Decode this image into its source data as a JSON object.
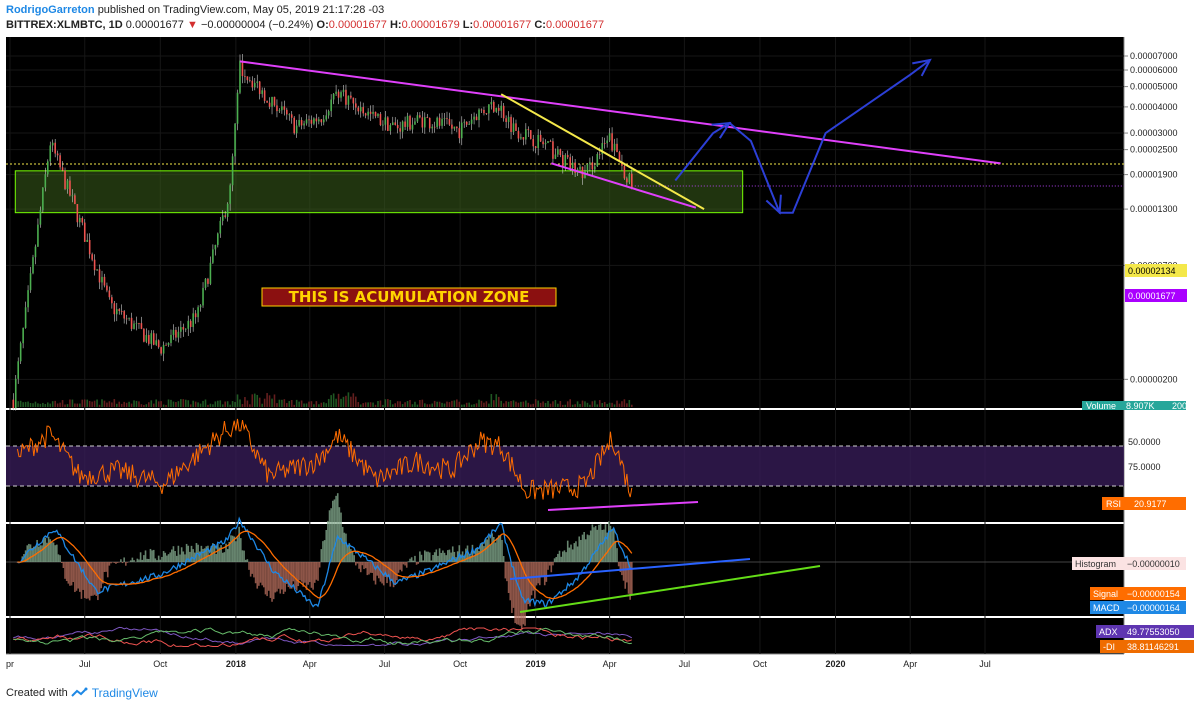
{
  "header": {
    "author": "RodrigoGarreton",
    "published_text": "published on TradingView.com, May 05, 2019 21:17:28 -03",
    "symbol": "BITTREX:XLMBTC, 1D",
    "last_price": "0.00001677",
    "change_arrow": "▼",
    "change": "−0.00000004 (−0.24%)",
    "open_label": "O:",
    "open": "0.00001677",
    "high_label": "H:",
    "high": "0.00001679",
    "low_label": "L:",
    "low": "0.00001677",
    "close_label": "C:",
    "close": "0.00001677"
  },
  "footer": {
    "created_with": "Created with",
    "brand": "TradingView"
  },
  "colors": {
    "background": "#000000",
    "up_candle": "#4caf50",
    "down_candle": "#ef5350",
    "wick": "#cfcfcf",
    "trendline_magenta": "#e040fb",
    "trendline_yellow": "#f4e84a",
    "zone_green": "#76ff03",
    "arrows_blue": "#2c3fd6",
    "rsi_line": "#ff6d00",
    "macd_line": "#1e88e5",
    "signal_line": "#ff6d00",
    "divergence_green": "#64dd17",
    "divergence_blue": "#2962ff"
  },
  "chart_data": {
    "type": "candlestick",
    "symbol": "XLMBTC",
    "exchange": "BITTREX",
    "interval": "1D",
    "scale": "log",
    "annotation": "THIS IS ACUMULATION ZONE",
    "price_axis_ticks": [
      "0.00007000",
      "0.00006000",
      "0.00005000",
      "0.00004000",
      "0.00003000",
      "0.00002500",
      "0.00001900",
      "0.00001300",
      "0.00000700",
      "0.00000200"
    ],
    "time_axis_labels": [
      "pr",
      "Jul",
      "Oct",
      "2018",
      "Apr",
      "Jul",
      "Oct",
      "2019",
      "Apr",
      "Jul",
      "Oct",
      "2020",
      "Apr",
      "Jul"
    ],
    "price_key_dates": [
      "2017-04-05",
      "2017-05-20",
      "2017-06-15",
      "2017-08-01",
      "2017-10-01",
      "2017-11-15",
      "2017-12-25",
      "2018-01-06",
      "2018-01-20",
      "2018-03-15",
      "2018-04-15",
      "2018-05-05",
      "2018-06-15",
      "2018-07-15",
      "2018-08-15",
      "2018-10-01",
      "2018-10-20",
      "2018-11-15",
      "2018-12-05",
      "2019-01-15",
      "2019-02-15",
      "2019-03-01",
      "2019-04-01",
      "2019-04-28"
    ],
    "price_key_values": [
      1.6e-06,
      2.7e-05,
      1.45e-05,
      4.5e-06,
      2.8e-06,
      4e-06,
      1.6e-05,
      6.2e-05,
      5.4e-05,
      3.2e-05,
      3.6e-05,
      4.8e-05,
      3.6e-05,
      3.2e-05,
      3.5e-05,
      3.1e-05,
      3.7e-05,
      4.2e-05,
      3.2e-05,
      2.6e-05,
      2.05e-05,
      1.9e-05,
      2.8e-05,
      1.677e-05
    ],
    "volume_label": "Volume",
    "volume_value": "8.907K",
    "volume_tick": "200",
    "horizontal_line_value": "0.00002134",
    "horizontal_line_price": 2.134e-05,
    "last_price_tag": "0.00001677",
    "last_price": 1.677e-05,
    "zone_range": [
      1.25e-05,
      1.98e-05
    ],
    "zone_dates": [
      "2017-04-05",
      "2019-09-10"
    ],
    "trendlines": [
      {
        "name": "magenta-resistance",
        "from": [
          "2018-01-06",
          6.6e-05
        ],
        "to": [
          "2020-07-20",
          2.15e-05
        ]
      },
      {
        "name": "yellow-resistance",
        "from": [
          "2018-11-20",
          4.6e-05
        ],
        "to": [
          "2019-07-25",
          1.3e-05
        ]
      },
      {
        "name": "magenta-support",
        "from": [
          "2019-01-20",
          2.15e-05
        ],
        "to": [
          "2019-07-15",
          1.32e-05
        ]
      }
    ],
    "projection_path_dates": [
      "2019-06-20",
      "2019-08-05",
      "2019-08-25",
      "2019-09-20",
      "2019-10-25",
      "2019-11-10",
      "2019-12-20",
      "2020-04-01",
      "2020-04-25"
    ],
    "projection_path_values": [
      1.78e-05,
      3e-05,
      3.35e-05,
      2.75e-05,
      1.25e-05,
      1.25e-05,
      3e-05,
      5.7e-05,
      6.7e-05
    ],
    "rsi": {
      "label": "RSI",
      "value": "20.9177",
      "ticks": [
        "75.0000",
        "50.0000"
      ],
      "bands": [
        70,
        30
      ],
      "key_dates": [
        "2017-04-10",
        "2017-05-20",
        "2017-06-25",
        "2017-08-10",
        "2017-10-05",
        "2017-12-20",
        "2018-01-06",
        "2018-02-10",
        "2018-04-10",
        "2018-05-05",
        "2018-06-20",
        "2018-08-10",
        "2018-09-20",
        "2018-10-25",
        "2018-11-20",
        "2018-12-20",
        "2019-01-20",
        "2019-03-01",
        "2019-04-05",
        "2019-04-28"
      ],
      "key_values": [
        60,
        82,
        40,
        45,
        32,
        86,
        92,
        40,
        55,
        80,
        36,
        55,
        45,
        75,
        70,
        25,
        26,
        30,
        78,
        21
      ]
    },
    "macd": {
      "histogram_label": "Histogram",
      "histogram_value": "−0.00000010",
      "signal_label": "Signal",
      "signal_value": "−0.00000154",
      "macd_label": "MACD",
      "macd_value": "−0.00000164",
      "key_dates": [
        "2017-04-10",
        "2017-05-25",
        "2017-07-15",
        "2017-10-01",
        "2017-12-20",
        "2018-01-06",
        "2018-02-15",
        "2018-04-10",
        "2018-05-05",
        "2018-07-15",
        "2018-08-25",
        "2018-10-20",
        "2018-11-20",
        "2018-12-15",
        "2019-01-15",
        "2019-02-20",
        "2019-04-05",
        "2019-04-28"
      ],
      "key_values": [
        0,
        8,
        -7,
        -3,
        5,
        10,
        -2,
        -11,
        6,
        -5,
        -2,
        3,
        9,
        -9,
        -10,
        -4,
        8,
        -1.64
      ]
    },
    "adx": {
      "adx_label": "ADX",
      "adx_value": "49.77553050",
      "di_label": "-DI",
      "di_value": "38.81146291"
    }
  }
}
